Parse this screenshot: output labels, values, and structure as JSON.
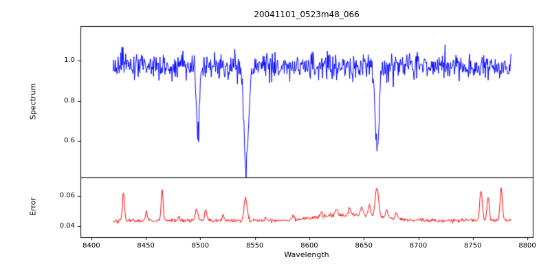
{
  "figure": {
    "background": "#ffffff",
    "spine_color": "#000000"
  },
  "chart_data": [
    {
      "type": "line",
      "name": "spectrum",
      "title": "20041101_0523m48_066",
      "ylabel": "Spectrum",
      "color": "#0000ff",
      "line_width": 1,
      "grid": false,
      "legend": null,
      "x_start": 8420,
      "x_end": 8785,
      "x_step": 0.5,
      "xlim": [
        8390,
        8805
      ],
      "ylim": [
        0.42,
        1.17
      ],
      "ytick_values": [
        0.6,
        0.8,
        1.0
      ],
      "ytick_labels": [
        "0.6",
        "0.8",
        "1.0"
      ],
      "baseline": 0.97,
      "noise_sigma": 0.032,
      "seed": 42,
      "absorption_lines": [
        {
          "center": 8498.0,
          "depth": 0.34,
          "sigma": 1.3
        },
        {
          "center": 8542.1,
          "depth": 0.49,
          "sigma": 2.2
        },
        {
          "center": 8662.1,
          "depth": 0.42,
          "sigma": 1.8
        }
      ]
    },
    {
      "type": "line",
      "name": "error",
      "ylabel": "Error",
      "xlabel": "Wavelength",
      "color": "#ff0000",
      "line_width": 1,
      "grid": false,
      "legend": null,
      "xlim": [
        8390,
        8805
      ],
      "ylim": [
        0.033,
        0.072
      ],
      "ytick_values": [
        0.04,
        0.06
      ],
      "ytick_labels": [
        "0.04",
        "0.06"
      ],
      "xtick_values": [
        8400,
        8450,
        8500,
        8550,
        8600,
        8650,
        8700,
        8750,
        8800
      ],
      "xtick_labels": [
        "8400",
        "8450",
        "8500",
        "8550",
        "8600",
        "8650",
        "8700",
        "8750",
        "8800"
      ],
      "baseline": 0.0438,
      "noise_sigma": 0.0006,
      "broad_bump": {
        "center": 8635,
        "height": 0.0035,
        "sigma": 28
      },
      "spikes": [
        {
          "center": 8429.5,
          "height": 0.0185,
          "sigma": 0.9
        },
        {
          "center": 8450.5,
          "height": 0.006,
          "sigma": 0.8
        },
        {
          "center": 8465.0,
          "height": 0.0205,
          "sigma": 0.9
        },
        {
          "center": 8480.0,
          "height": 0.003,
          "sigma": 0.8
        },
        {
          "center": 8496.5,
          "height": 0.0075,
          "sigma": 1.2
        },
        {
          "center": 8505.0,
          "height": 0.0075,
          "sigma": 0.9
        },
        {
          "center": 8521.0,
          "height": 0.0035,
          "sigma": 0.8
        },
        {
          "center": 8541.5,
          "height": 0.0155,
          "sigma": 1.4
        },
        {
          "center": 8560.0,
          "height": 0.002,
          "sigma": 0.8
        },
        {
          "center": 8585.0,
          "height": 0.0028,
          "sigma": 0.9
        },
        {
          "center": 8611.0,
          "height": 0.0028,
          "sigma": 0.9
        },
        {
          "center": 8625.0,
          "height": 0.004,
          "sigma": 1.2
        },
        {
          "center": 8637.0,
          "height": 0.0045,
          "sigma": 1.2
        },
        {
          "center": 8648.0,
          "height": 0.006,
          "sigma": 1.2
        },
        {
          "center": 8655.0,
          "height": 0.008,
          "sigma": 1.0
        },
        {
          "center": 8662.0,
          "height": 0.019,
          "sigma": 1.6
        },
        {
          "center": 8671.0,
          "height": 0.0065,
          "sigma": 1.0
        },
        {
          "center": 8680.0,
          "height": 0.004,
          "sigma": 1.0
        },
        {
          "center": 8757.5,
          "height": 0.0195,
          "sigma": 1.2
        },
        {
          "center": 8764.0,
          "height": 0.0155,
          "sigma": 1.0
        },
        {
          "center": 8776.0,
          "height": 0.0205,
          "sigma": 1.1
        }
      ]
    }
  ]
}
